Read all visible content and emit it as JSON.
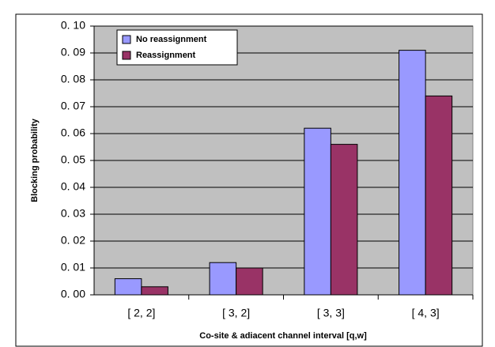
{
  "chart_data": {
    "type": "bar",
    "categories": [
      "[ 2, 2]",
      "[ 3, 2]",
      "[ 3, 3]",
      "[ 4, 3]"
    ],
    "series": [
      {
        "name": "No reassignment",
        "color": "#9999ff",
        "values": [
          0.006,
          0.012,
          0.062,
          0.091
        ]
      },
      {
        "name": "Reassignment",
        "color": "#993366",
        "values": [
          0.003,
          0.01,
          0.056,
          0.074
        ]
      }
    ],
    "x_label": "Co-site & adiacent channel interval [q,w]",
    "y_label": "Blocking probability",
    "ylim": [
      0,
      0.1
    ],
    "yticks": [
      {
        "value": 0,
        "label": "0. 00"
      },
      {
        "value": 0.01,
        "label": "0. 01"
      },
      {
        "value": 0.02,
        "label": "0. 02"
      },
      {
        "value": 0.03,
        "label": "0. 03"
      },
      {
        "value": 0.04,
        "label": "0. 04"
      },
      {
        "value": 0.05,
        "label": "0. 05"
      },
      {
        "value": 0.06,
        "label": "0. 06"
      },
      {
        "value": 0.07,
        "label": "0. 07"
      },
      {
        "value": 0.08,
        "label": "0. 08"
      },
      {
        "value": 0.09,
        "label": "0. 09"
      },
      {
        "value": 0.1,
        "label": "0. 10"
      }
    ],
    "grid": true,
    "legend": "top-left"
  }
}
